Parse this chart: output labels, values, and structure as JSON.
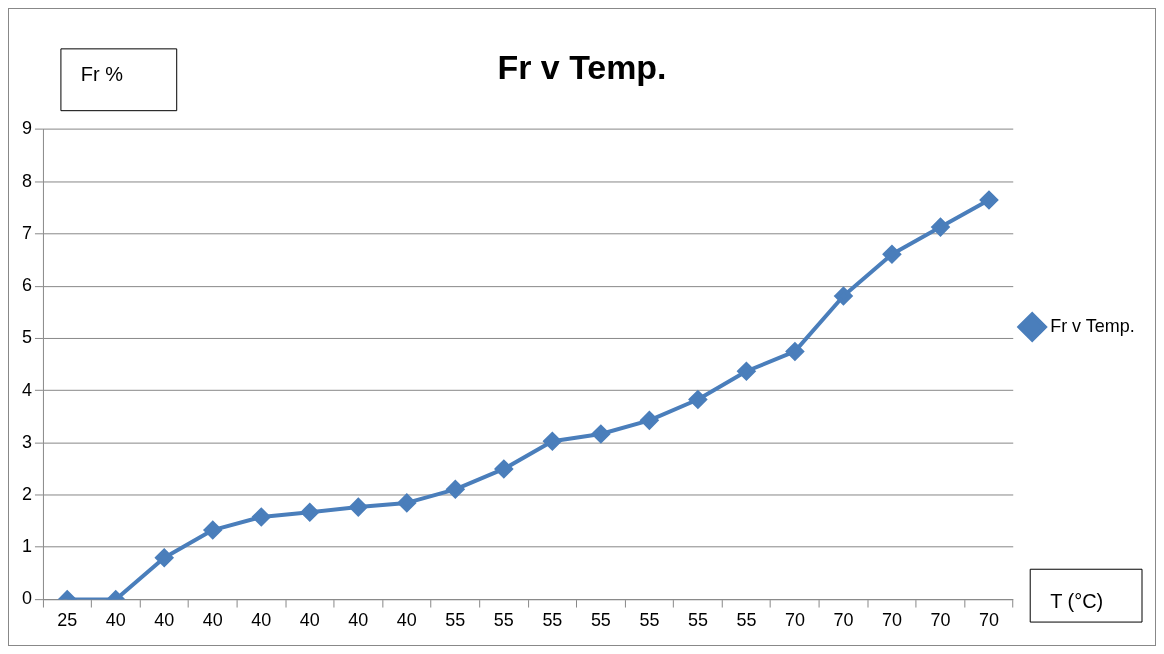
{
  "chart_data": {
    "type": "line",
    "title": "Fr v Temp.",
    "xlabel": "T (°C)",
    "ylabel": "Fr %",
    "categories": [
      "25",
      "40",
      "40",
      "40",
      "40",
      "40",
      "40",
      "40",
      "55",
      "55",
      "55",
      "55",
      "55",
      "55",
      "55",
      "70",
      "70",
      "70",
      "70",
      "70"
    ],
    "series": [
      {
        "name": "Fr v Temp.",
        "color": "#4a7ebb",
        "values": [
          0,
          0,
          0.8,
          1.33,
          1.58,
          1.67,
          1.77,
          1.85,
          2.11,
          2.5,
          3.03,
          3.17,
          3.43,
          3.83,
          4.37,
          4.75,
          5.81,
          6.61,
          7.13,
          7.65
        ]
      }
    ],
    "ylim": [
      0,
      9
    ],
    "yticks": [
      0,
      1,
      2,
      3,
      4,
      5,
      6,
      7,
      8,
      9
    ],
    "grid": "y",
    "legend": "right",
    "marker": "diamond",
    "line_style": "solid"
  }
}
